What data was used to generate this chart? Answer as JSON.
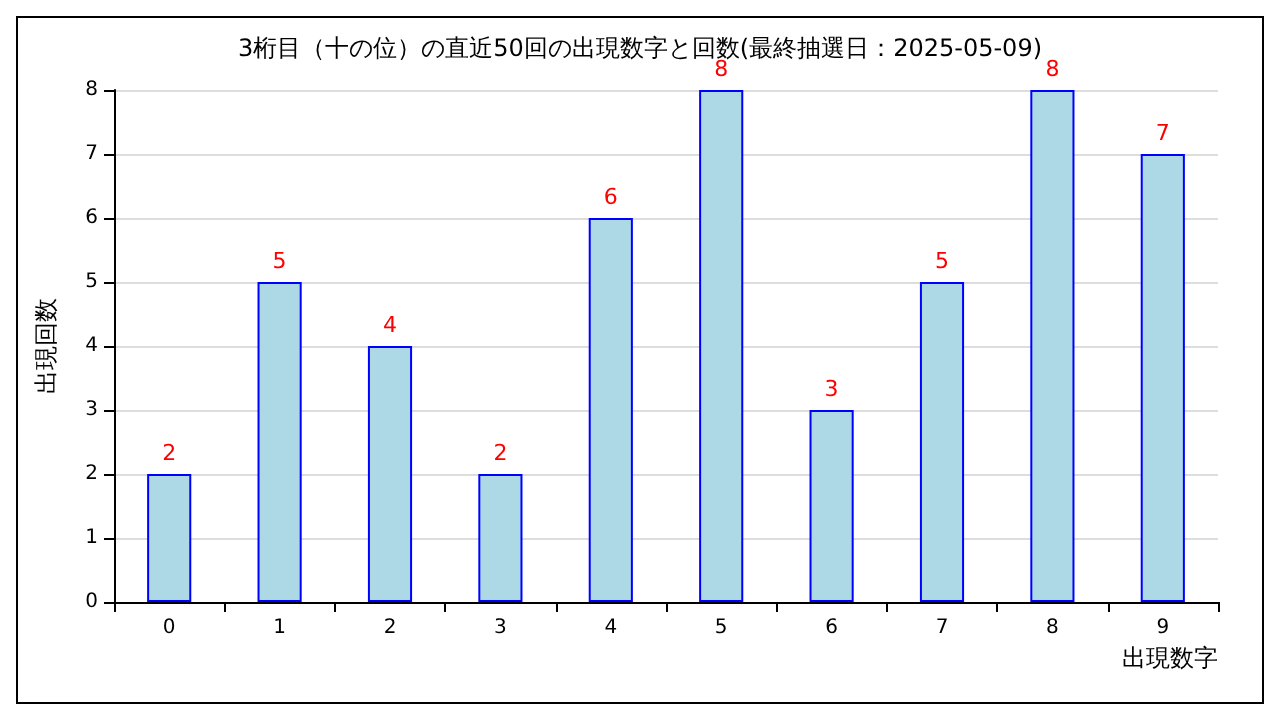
{
  "chart_data": {
    "type": "bar",
    "title": "3桁目（十の位）の直近50回の出現数字と回数(最終抽選日：2025-05-09)",
    "xlabel": "出現数字",
    "ylabel": "出現回数",
    "categories": [
      "0",
      "1",
      "2",
      "3",
      "4",
      "5",
      "6",
      "7",
      "8",
      "9"
    ],
    "values": [
      2,
      5,
      4,
      2,
      6,
      8,
      3,
      5,
      8,
      7
    ],
    "color": "#add8e6",
    "ylim": [
      0,
      8
    ],
    "yticks": [
      0,
      1,
      2,
      3,
      4,
      5,
      6,
      7,
      8
    ],
    "grid": "y",
    "data_labels": true
  }
}
